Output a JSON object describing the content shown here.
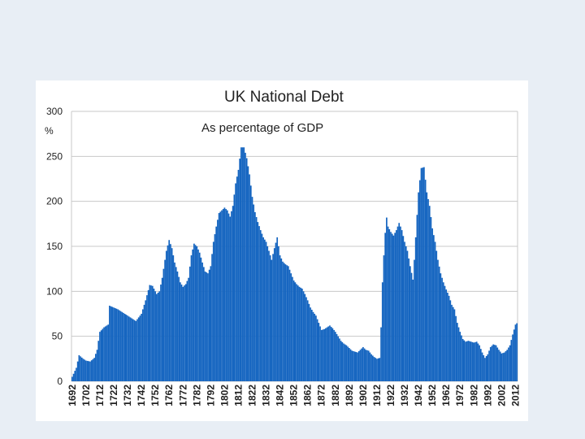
{
  "colors": {
    "page_background": "#e8eef5",
    "panel": "#ffffff",
    "bar": "#1565c0",
    "grid": "#c8c8c8"
  },
  "chart_data": {
    "type": "bar",
    "title": "UK National Debt",
    "subtitle": "As percentage of GDP",
    "ylabel": "%",
    "xlabel": "",
    "ylim": [
      0,
      300
    ],
    "yticks": [
      0,
      50,
      100,
      150,
      200,
      250,
      300
    ],
    "grid": true,
    "xtick_labels": [
      "1692",
      "1702",
      "1712",
      "1722",
      "1732",
      "1742",
      "1752",
      "1762",
      "1772",
      "1782",
      "1792",
      "1802",
      "1812",
      "1822",
      "1832",
      "1842",
      "1852",
      "1862",
      "1872",
      "1882",
      "1892",
      "1902",
      "1912",
      "1922",
      "1932",
      "1942",
      "1952",
      "1962",
      "1972",
      "1982",
      "1992",
      "2002",
      "2012"
    ],
    "x_start": 1692,
    "x_end": 2014,
    "keypoints": [
      [
        1692,
        5
      ],
      [
        1695,
        15
      ],
      [
        1697,
        29
      ],
      [
        1700,
        25
      ],
      [
        1702,
        23
      ],
      [
        1705,
        22
      ],
      [
        1708,
        26
      ],
      [
        1710,
        35
      ],
      [
        1712,
        55
      ],
      [
        1715,
        60
      ],
      [
        1718,
        63
      ],
      [
        1719,
        84
      ],
      [
        1725,
        80
      ],
      [
        1730,
        75
      ],
      [
        1735,
        70
      ],
      [
        1738,
        67
      ],
      [
        1742,
        75
      ],
      [
        1745,
        90
      ],
      [
        1748,
        107
      ],
      [
        1750,
        106
      ],
      [
        1753,
        97
      ],
      [
        1755,
        100
      ],
      [
        1757,
        115
      ],
      [
        1760,
        145
      ],
      [
        1762,
        157
      ],
      [
        1764,
        148
      ],
      [
        1766,
        132
      ],
      [
        1768,
        122
      ],
      [
        1770,
        110
      ],
      [
        1772,
        105
      ],
      [
        1774,
        108
      ],
      [
        1776,
        115
      ],
      [
        1778,
        140
      ],
      [
        1780,
        153
      ],
      [
        1782,
        150
      ],
      [
        1784,
        143
      ],
      [
        1786,
        132
      ],
      [
        1788,
        122
      ],
      [
        1790,
        120
      ],
      [
        1792,
        128
      ],
      [
        1794,
        155
      ],
      [
        1796,
        172
      ],
      [
        1798,
        187
      ],
      [
        1800,
        190
      ],
      [
        1802,
        193
      ],
      [
        1804,
        190
      ],
      [
        1806,
        183
      ],
      [
        1808,
        195
      ],
      [
        1810,
        220
      ],
      [
        1812,
        235
      ],
      [
        1814,
        260
      ],
      [
        1816,
        260
      ],
      [
        1818,
        248
      ],
      [
        1820,
        230
      ],
      [
        1822,
        205
      ],
      [
        1824,
        188
      ],
      [
        1826,
        177
      ],
      [
        1828,
        168
      ],
      [
        1830,
        160
      ],
      [
        1832,
        155
      ],
      [
        1834,
        145
      ],
      [
        1836,
        135
      ],
      [
        1838,
        148
      ],
      [
        1840,
        160
      ],
      [
        1842,
        140
      ],
      [
        1844,
        133
      ],
      [
        1846,
        130
      ],
      [
        1848,
        128
      ],
      [
        1850,
        120
      ],
      [
        1852,
        112
      ],
      [
        1854,
        108
      ],
      [
        1856,
        105
      ],
      [
        1858,
        103
      ],
      [
        1860,
        97
      ],
      [
        1862,
        90
      ],
      [
        1864,
        82
      ],
      [
        1866,
        77
      ],
      [
        1868,
        73
      ],
      [
        1870,
        65
      ],
      [
        1872,
        57
      ],
      [
        1874,
        58
      ],
      [
        1876,
        60
      ],
      [
        1878,
        62
      ],
      [
        1880,
        59
      ],
      [
        1882,
        55
      ],
      [
        1884,
        50
      ],
      [
        1886,
        45
      ],
      [
        1888,
        42
      ],
      [
        1890,
        40
      ],
      [
        1892,
        37
      ],
      [
        1894,
        34
      ],
      [
        1896,
        33
      ],
      [
        1898,
        32
      ],
      [
        1900,
        35
      ],
      [
        1902,
        38
      ],
      [
        1904,
        35
      ],
      [
        1906,
        34
      ],
      [
        1908,
        30
      ],
      [
        1910,
        27
      ],
      [
        1912,
        25
      ],
      [
        1914,
        26
      ],
      [
        1915,
        60
      ],
      [
        1916,
        110
      ],
      [
        1917,
        140
      ],
      [
        1918,
        165
      ],
      [
        1919,
        182
      ],
      [
        1920,
        172
      ],
      [
        1922,
        166
      ],
      [
        1924,
        162
      ],
      [
        1926,
        168
      ],
      [
        1928,
        176
      ],
      [
        1930,
        168
      ],
      [
        1932,
        155
      ],
      [
        1934,
        145
      ],
      [
        1936,
        128
      ],
      [
        1938,
        113
      ],
      [
        1939,
        135
      ],
      [
        1940,
        160
      ],
      [
        1942,
        210
      ],
      [
        1944,
        237
      ],
      [
        1946,
        238
      ],
      [
        1948,
        210
      ],
      [
        1950,
        195
      ],
      [
        1952,
        170
      ],
      [
        1954,
        155
      ],
      [
        1956,
        135
      ],
      [
        1958,
        120
      ],
      [
        1960,
        110
      ],
      [
        1962,
        102
      ],
      [
        1964,
        95
      ],
      [
        1966,
        85
      ],
      [
        1968,
        80
      ],
      [
        1970,
        65
      ],
      [
        1972,
        55
      ],
      [
        1974,
        47
      ],
      [
        1976,
        44
      ],
      [
        1978,
        45
      ],
      [
        1980,
        44
      ],
      [
        1982,
        43
      ],
      [
        1984,
        44
      ],
      [
        1986,
        40
      ],
      [
        1988,
        32
      ],
      [
        1990,
        26
      ],
      [
        1992,
        30
      ],
      [
        1994,
        38
      ],
      [
        1996,
        41
      ],
      [
        1998,
        40
      ],
      [
        2000,
        35
      ],
      [
        2002,
        31
      ],
      [
        2004,
        32
      ],
      [
        2006,
        35
      ],
      [
        2008,
        40
      ],
      [
        2010,
        52
      ],
      [
        2012,
        63
      ],
      [
        2014,
        66
      ]
    ]
  }
}
